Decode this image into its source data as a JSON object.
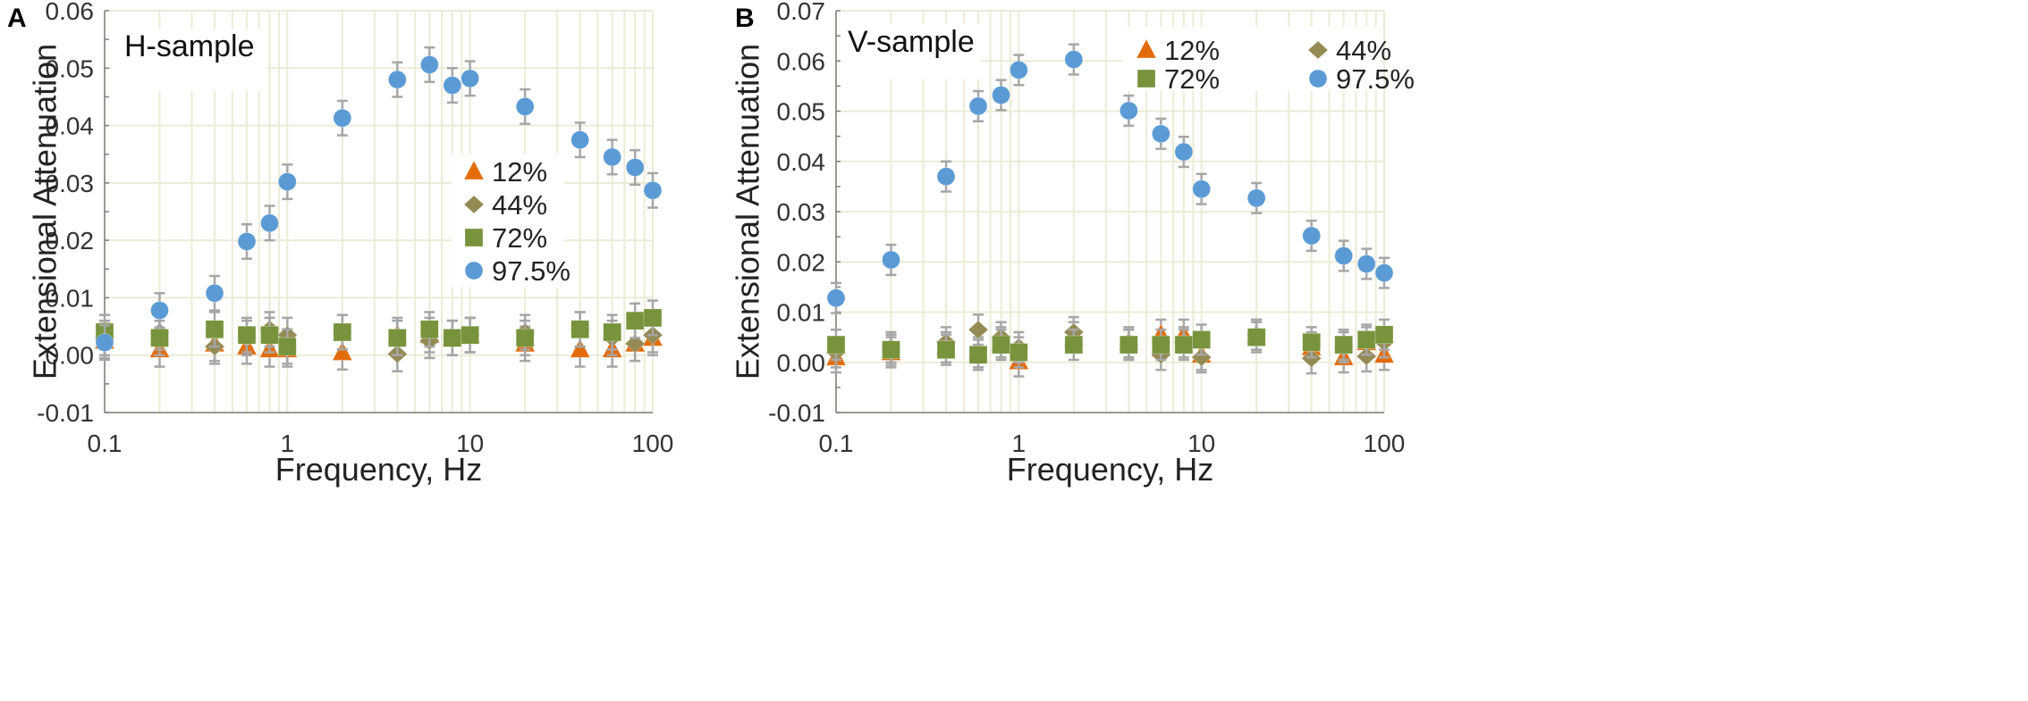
{
  "chart_data": [
    {
      "type": "scatter",
      "panel_letter": "A",
      "sample_label": "H-sample",
      "xlabel": "Frequency, Hz",
      "ylabel": "Extensional Attenuation",
      "xscale": "log",
      "xlim": [
        0.1,
        100
      ],
      "ylim": [
        -0.01,
        0.06
      ],
      "y_ticks": [
        -0.01,
        0.0,
        0.01,
        0.02,
        0.03,
        0.04,
        0.05,
        0.06
      ],
      "y_tick_labels": [
        "-0.01",
        "0.00",
        "0.01",
        "0.02",
        "0.03",
        "0.04",
        "0.05",
        "0.06"
      ],
      "x_ticks": [
        0.1,
        1,
        10,
        100
      ],
      "x_tick_labels": [
        "0.1",
        "1",
        "10",
        "100"
      ],
      "grid": true,
      "legend_position": "center-right",
      "legend_layout": "one-column",
      "x": [
        0.1,
        0.2,
        0.4,
        0.6,
        0.8,
        1,
        2,
        4,
        6,
        8,
        10,
        20,
        40,
        60,
        80,
        100
      ],
      "series": [
        {
          "name": "12%",
          "marker": "triangle",
          "color": "#e36c0a",
          "values": [
            0.0025,
            0.001,
            0.002,
            0.0015,
            0.001,
            0.001,
            0.0005,
            0.0035,
            0.0035,
            0.003,
            0.0035,
            0.002,
            0.001,
            0.001,
            0.002,
            0.003
          ],
          "error": 0.003
        },
        {
          "name": "44%",
          "marker": "diamond",
          "color": "#948a54",
          "values": [
            0.003,
            0.004,
            0.0015,
            0.003,
            0.0045,
            0.0035,
            0.004,
            0.0002,
            0.0025,
            0.003,
            0.0035,
            0.004,
            0.0045,
            0.003,
            0.002,
            0.0035
          ],
          "error": 0.003
        },
        {
          "name": "72%",
          "marker": "square",
          "color": "#77933c",
          "values": [
            0.004,
            0.003,
            0.0045,
            0.0035,
            0.0035,
            0.0015,
            0.004,
            0.003,
            0.0045,
            0.003,
            0.0035,
            0.003,
            0.0045,
            0.004,
            0.006,
            0.0065
          ],
          "error": 0.003
        },
        {
          "name": "97.5%",
          "marker": "circle",
          "color": "#5b9bd5",
          "values": [
            0.0022,
            0.0078,
            0.0108,
            0.0198,
            0.023,
            0.0302,
            0.0413,
            0.048,
            0.0506,
            0.047,
            0.0482,
            0.0433,
            0.0375,
            0.0345,
            0.0327,
            0.0287
          ],
          "error": 0.003
        }
      ]
    },
    {
      "type": "scatter",
      "panel_letter": "B",
      "sample_label": "V-sample",
      "xlabel": "Frequency, Hz",
      "ylabel": "Extensional Attenuation",
      "xscale": "log",
      "xlim": [
        0.1,
        100
      ],
      "ylim": [
        -0.01,
        0.07
      ],
      "y_ticks": [
        -0.01,
        0.0,
        0.01,
        0.02,
        0.03,
        0.04,
        0.05,
        0.06,
        0.07
      ],
      "y_tick_labels": [
        "-0.01",
        "0.00",
        "0.01",
        "0.02",
        "0.03",
        "0.04",
        "0.05",
        "0.06",
        "0.07"
      ],
      "x_ticks": [
        0.1,
        1,
        10,
        100
      ],
      "x_tick_labels": [
        "0.1",
        "1",
        "10",
        "100"
      ],
      "grid": true,
      "legend_position": "top-right",
      "legend_layout": "two-columns",
      "x": [
        0.1,
        0.2,
        0.4,
        0.6,
        0.8,
        1,
        2,
        4,
        6,
        8,
        10,
        20,
        40,
        60,
        80,
        100
      ],
      "series": [
        {
          "name": "12%",
          "marker": "triangle",
          "color": "#e36c0a",
          "values": [
            0.001,
            0.002,
            0.003,
            0.002,
            0.004,
            0.0002,
            0.005,
            0.004,
            0.0055,
            0.0055,
            0.0015,
            0.0055,
            0.003,
            0.001,
            0.004,
            0.0015
          ],
          "error": 0.003
        },
        {
          "name": "44%",
          "marker": "diamond",
          "color": "#948a54",
          "values": [
            0.002,
            0.003,
            0.004,
            0.0065,
            0.005,
            0.003,
            0.006,
            0.0035,
            0.0015,
            0.004,
            0.001,
            0.0055,
            0.0008,
            0.003,
            0.0012,
            0.004
          ],
          "error": 0.003
        },
        {
          "name": "72%",
          "marker": "square",
          "color": "#77933c",
          "values": [
            0.0035,
            0.0025,
            0.0025,
            0.0015,
            0.0035,
            0.002,
            0.0035,
            0.0035,
            0.0035,
            0.0035,
            0.0045,
            0.005,
            0.004,
            0.0035,
            0.0045,
            0.0055
          ],
          "error": 0.003
        },
        {
          "name": "97.5%",
          "marker": "circle",
          "color": "#5b9bd5",
          "values": [
            0.0128,
            0.0204,
            0.037,
            0.051,
            0.0532,
            0.0582,
            0.0603,
            0.0501,
            0.0455,
            0.0419,
            0.0345,
            0.0327,
            0.0252,
            0.0212,
            0.0196,
            0.0178
          ],
          "error": 0.003
        }
      ]
    }
  ]
}
